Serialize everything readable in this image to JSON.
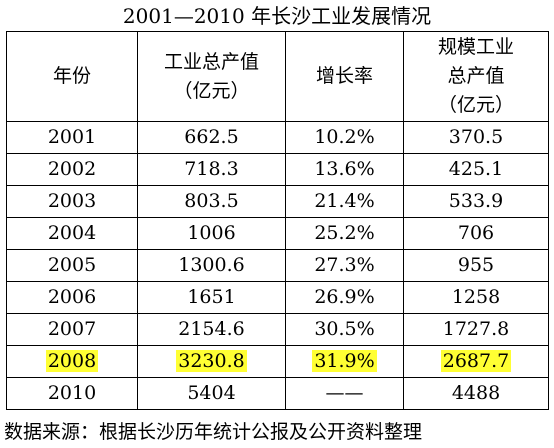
{
  "title": "2001—2010 年长沙工业发展情况",
  "headers": [
    {
      "line1": "年份",
      "line2": "",
      "line3": ""
    },
    {
      "line1": "工业总产值",
      "line2": "（亿元）",
      "line3": ""
    },
    {
      "line1": "增长率",
      "line2": "",
      "line3": ""
    },
    {
      "line1": "规模工业",
      "line2": "总产值",
      "line3": "（亿元）"
    }
  ],
  "rows": [
    {
      "year": "2001",
      "output": "662.5",
      "growth": "10.2%",
      "scale": "370.5",
      "highlight": false
    },
    {
      "year": "2002",
      "output": "718.3",
      "growth": "13.6%",
      "scale": "425.1",
      "highlight": false
    },
    {
      "year": "2003",
      "output": "803.5",
      "growth": "21.4%",
      "scale": "533.9",
      "highlight": false
    },
    {
      "year": "2004",
      "output": "1006",
      "growth": "25.2%",
      "scale": "706",
      "highlight": false
    },
    {
      "year": "2005",
      "output": "1300.6",
      "growth": "27.3%",
      "scale": "955",
      "highlight": false
    },
    {
      "year": "2006",
      "output": "1651",
      "growth": "26.9%",
      "scale": "1258",
      "highlight": false
    },
    {
      "year": "2007",
      "output": "2154.6",
      "growth": "30.5%",
      "scale": "1727.8",
      "highlight": false
    },
    {
      "year": "2008",
      "output": "3230.8",
      "growth": "31.9%",
      "scale": "2687.7",
      "highlight": true
    },
    {
      "year": "2010",
      "output": "5404",
      "growth": "——",
      "scale": "4488",
      "highlight": false
    }
  ],
  "source": "数据来源：根据长沙历年统计公报及公开资料整理",
  "colors": {
    "highlight": "#ffff33",
    "border": "#000000",
    "text": "#000000"
  }
}
